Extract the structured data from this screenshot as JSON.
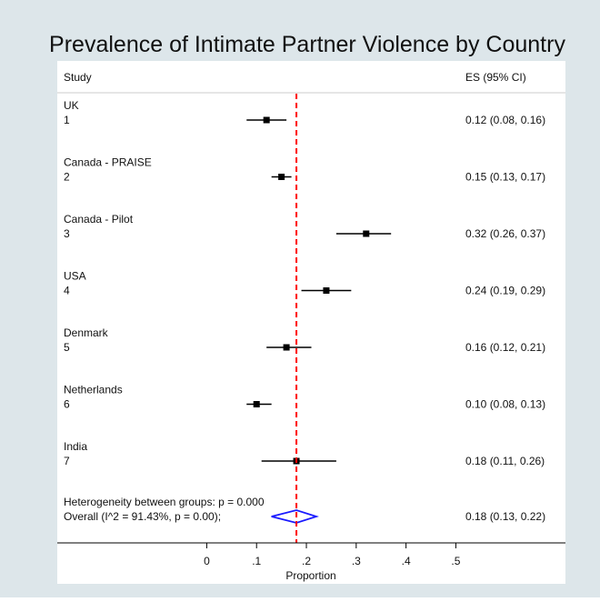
{
  "chart_data": {
    "type": "forest",
    "title": "Prevalence of Intimate Partner Violence by Country",
    "column_headers": {
      "study": "Study",
      "es": "ES (95% CI)"
    },
    "xlabel": "Proportion",
    "xlim": [
      -0.3,
      0.72
    ],
    "xticks": [
      {
        "value": 0,
        "label": "0"
      },
      {
        "value": 0.1,
        "label": ".1"
      },
      {
        "value": 0.2,
        "label": ".2"
      },
      {
        "value": 0.3,
        "label": ".3"
      },
      {
        "value": 0.4,
        "label": ".4"
      },
      {
        "value": 0.5,
        "label": ".5"
      }
    ],
    "studies": [
      {
        "name": "UK",
        "id": "1",
        "es": 0.12,
        "lo": 0.08,
        "hi": 0.16,
        "es_label": "0.12 (0.08, 0.16)"
      },
      {
        "name": "Canada - PRAISE",
        "id": "2",
        "es": 0.15,
        "lo": 0.13,
        "hi": 0.17,
        "es_label": "0.15 (0.13, 0.17)"
      },
      {
        "name": "Canada - Pilot",
        "id": "3",
        "es": 0.32,
        "lo": 0.26,
        "hi": 0.37,
        "es_label": "0.32 (0.26, 0.37)"
      },
      {
        "name": "USA",
        "id": "4",
        "es": 0.24,
        "lo": 0.19,
        "hi": 0.29,
        "es_label": "0.24 (0.19, 0.29)"
      },
      {
        "name": "Denmark",
        "id": "5",
        "es": 0.16,
        "lo": 0.12,
        "hi": 0.21,
        "es_label": "0.16 (0.12, 0.21)"
      },
      {
        "name": "Netherlands",
        "id": "6",
        "es": 0.1,
        "lo": 0.08,
        "hi": 0.13,
        "es_label": "0.10 (0.08, 0.13)"
      },
      {
        "name": "India",
        "id": "7",
        "es": 0.18,
        "lo": 0.11,
        "hi": 0.26,
        "es_label": "0.18 (0.11, 0.26)"
      }
    ],
    "overall": {
      "heterogeneity_text": "Heterogeneity between groups: p = 0.000",
      "label": "Overall  (I^2 = 91.43%, p = 0.00);",
      "es": 0.18,
      "lo": 0.13,
      "hi": 0.22,
      "es_label": "0.18 (0.13, 0.22)"
    },
    "overall_line_value": 0.18,
    "colors": {
      "frame_background": "#dde6ea",
      "plot_background": "#ffffff",
      "marker": "#000000",
      "overall_diamond": "#1a1aff",
      "overall_line": "#ff0000"
    }
  }
}
